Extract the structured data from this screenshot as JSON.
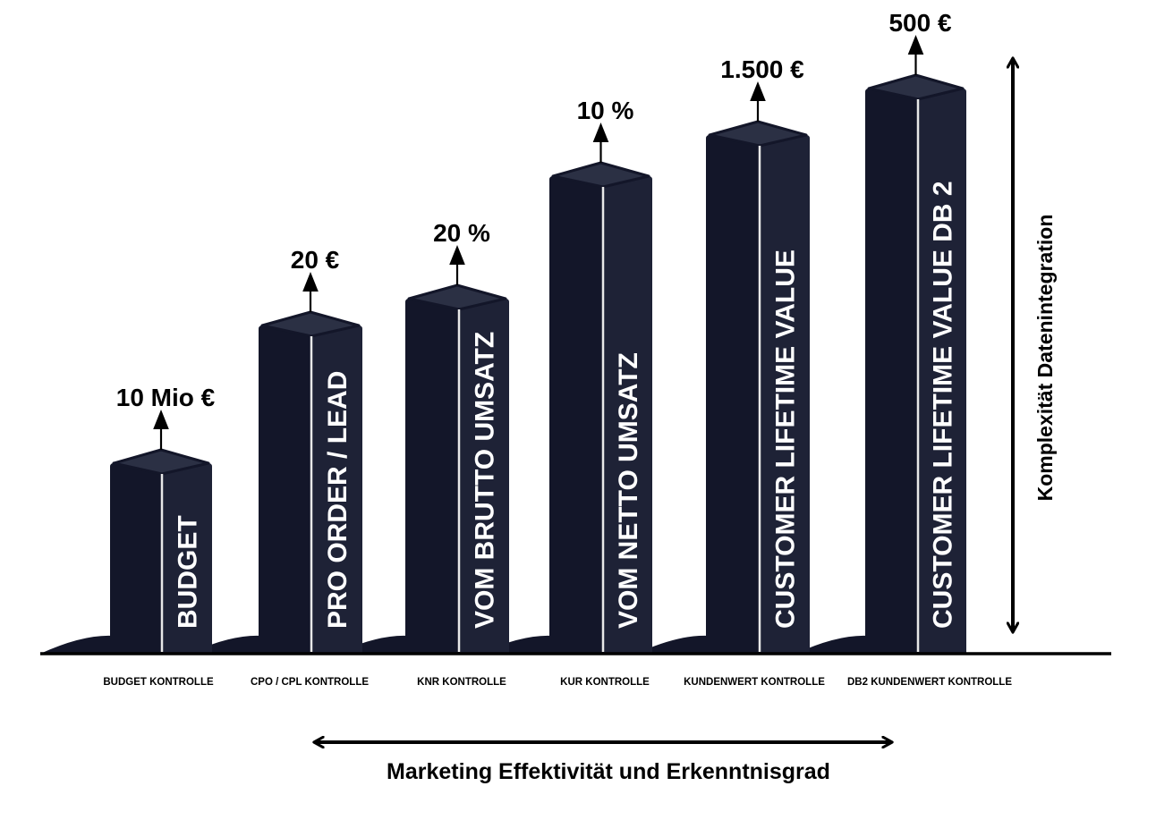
{
  "colors": {
    "bar_front": "#131629",
    "bar_side": "#1e2236",
    "bar_top": "#2b3044",
    "edge": "#e8e8e8",
    "ink": "#000000",
    "text_on_bar": "#ffffff"
  },
  "pillars": [
    {
      "name": "BUDGET",
      "value_label": "10 Mio €",
      "category": "BUDGET KONTROLLE"
    },
    {
      "name": "PRO ORDER / LEAD",
      "value_label": "20 €",
      "category": "CPO / CPL KONTROLLE"
    },
    {
      "name": "VOM BRUTTO UMSATZ",
      "value_label": "20 %",
      "category": "KNR KONTROLLE"
    },
    {
      "name": "VOM NETTO UMSATZ",
      "value_label": "10 %",
      "category": "KUR KONTROLLE"
    },
    {
      "name": "CUSTOMER LIFETIME VALUE",
      "value_label": "1.500 €",
      "category": "KUNDENWERT KONTROLLE"
    },
    {
      "name": "CUSTOMER LIFETIME VALUE DB 2",
      "value_label": "500 €",
      "category": "DB2 KUNDENWERT KONTROLLE"
    }
  ],
  "x_axis_label": "Marketing Effektivität und Erkenntnisgrad",
  "y_axis_label": "Komplexität Datenintegration"
}
